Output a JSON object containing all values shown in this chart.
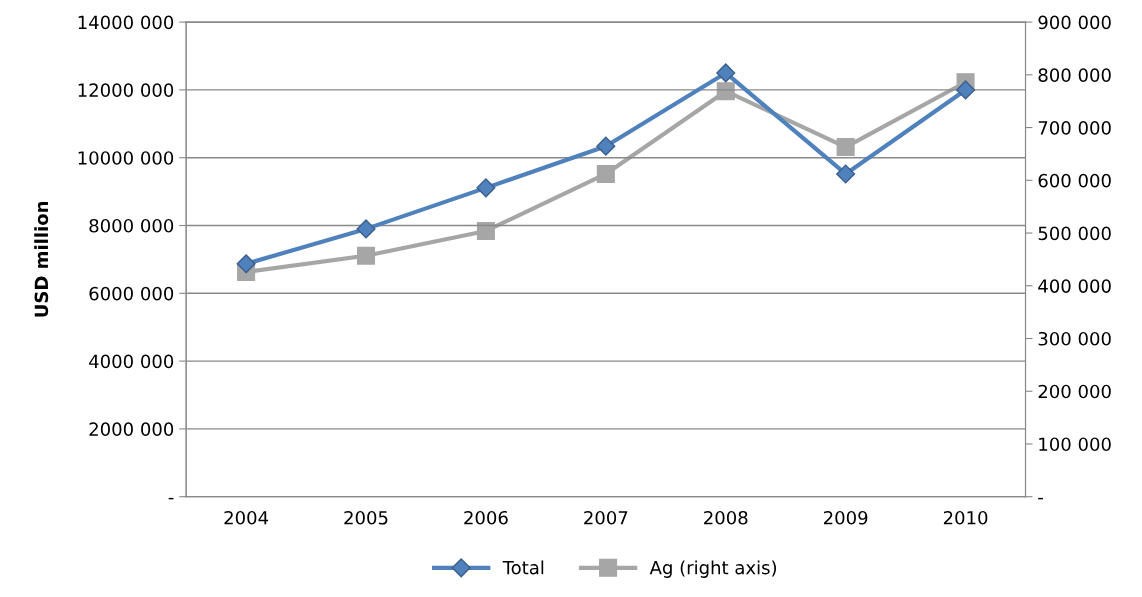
{
  "chart_data": {
    "type": "line",
    "ylabel": "USD million",
    "categories": [
      "2004",
      "2005",
      "2006",
      "2007",
      "2008",
      "2009",
      "2010"
    ],
    "series": [
      {
        "name": "Total",
        "color": "#4f81bd",
        "marker": "diamond",
        "values": [
          6870000,
          7900000,
          9110000,
          10340000,
          12500000,
          9520000,
          12000000
        ]
      },
      {
        "name": "Ag (right axis)",
        "color": "#a6a6a6",
        "marker": "square",
        "axis": "y2",
        "values": [
          426000,
          457000,
          504000,
          612000,
          769000,
          663000,
          786000
        ]
      }
    ],
    "ylim": [
      0,
      14000000
    ],
    "yticks": [
      {
        "value": 0,
        "label": "-"
      },
      {
        "value": 2000000,
        "label": "2000 000"
      },
      {
        "value": 4000000,
        "label": "4000 000"
      },
      {
        "value": 6000000,
        "label": "6000 000"
      },
      {
        "value": 8000000,
        "label": "8000 000"
      },
      {
        "value": 10000000,
        "label": "10000 000"
      },
      {
        "value": 12000000,
        "label": "12000 000"
      },
      {
        "value": 14000000,
        "label": "14000 000"
      }
    ],
    "y2lim": [
      0,
      900000
    ],
    "y2ticks": [
      {
        "value": 0,
        "label": "-"
      },
      {
        "value": 100000,
        "label": "100 000"
      },
      {
        "value": 200000,
        "label": "200 000"
      },
      {
        "value": 300000,
        "label": "300 000"
      },
      {
        "value": 400000,
        "label": "400 000"
      },
      {
        "value": 500000,
        "label": "500 000"
      },
      {
        "value": 600000,
        "label": "600 000"
      },
      {
        "value": 700000,
        "label": "700 000"
      },
      {
        "value": 800000,
        "label": "800 000"
      },
      {
        "value": 900000,
        "label": "900 000"
      }
    ],
    "grid": "y",
    "legend": "bottom",
    "line_style": "solid"
  }
}
